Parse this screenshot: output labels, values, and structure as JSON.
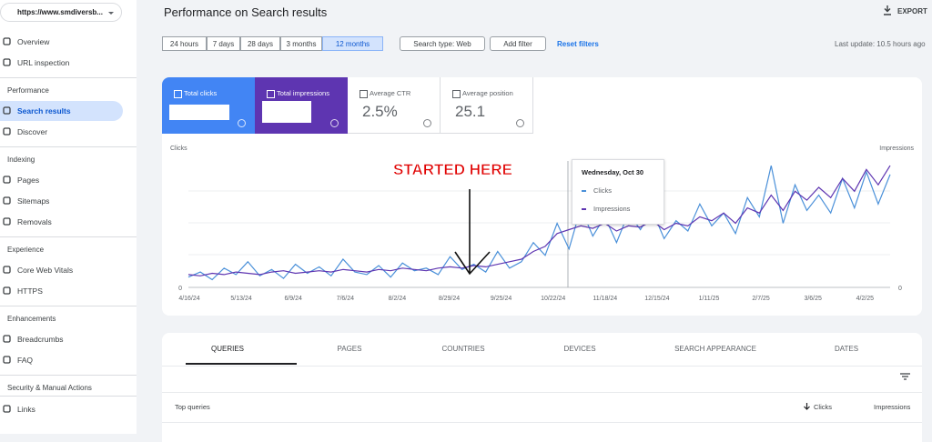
{
  "sidebar": {
    "site": "https://www.smdiversb...",
    "top_items": [
      "Overview",
      "URL inspection"
    ],
    "groups": [
      {
        "title": "Performance",
        "items": [
          "Search results",
          "Discover"
        ]
      },
      {
        "title": "Indexing",
        "items": [
          "Pages",
          "Sitemaps",
          "Removals"
        ]
      },
      {
        "title": "Experience",
        "items": [
          "Core Web Vitals",
          "HTTPS"
        ]
      },
      {
        "title": "Enhancements",
        "items": [
          "Breadcrumbs",
          "FAQ"
        ]
      },
      {
        "title": "Security & Manual Actions",
        "items": []
      }
    ],
    "bottom_items": [
      "Links"
    ]
  },
  "header": {
    "title": "Performance on Search results",
    "export": "EXPORT"
  },
  "filters": {
    "date_ranges": [
      "24 hours",
      "7 days",
      "28 days",
      "3 months",
      "12 months"
    ],
    "selected_index": 4,
    "search_type": "Search type: Web",
    "add_filter": "Add filter",
    "reset": "Reset filters",
    "last_update": "Last update: 10.5 hours ago"
  },
  "metric_cards": [
    {
      "label": "Total clicks"
    },
    {
      "label": "Total impressions"
    },
    {
      "label": "Average CTR",
      "value": "2.5%"
    },
    {
      "label": "Average position",
      "value": "25.1"
    }
  ],
  "chart_data": {
    "type": "line",
    "ylabel": "Clicks",
    "y2label": "Impressions",
    "annotation": "STARTED HERE",
    "xtick_labels": [
      "4/16/24",
      "5/13/24",
      "6/9/24",
      "7/6/24",
      "8/2/24",
      "8/29/24",
      "9/25/24",
      "10/22/24",
      "11/18/24",
      "12/15/24",
      "1/11/25",
      "2/7/25",
      "3/6/25",
      "4/2/25"
    ],
    "ylim": [
      0,
      100
    ],
    "yticks": [
      0
    ],
    "y2lim": [
      0,
      100
    ],
    "y2ticks": [
      0
    ],
    "series": [
      {
        "name": "Clicks",
        "color": "#4a90d9",
        "values": [
          8,
          12,
          6,
          15,
          10,
          20,
          9,
          14,
          7,
          18,
          11,
          16,
          9,
          22,
          12,
          10,
          17,
          8,
          19,
          13,
          15,
          10,
          24,
          14,
          18,
          12,
          28,
          15,
          20,
          35,
          25,
          50,
          30,
          62,
          40,
          55,
          35,
          58,
          45,
          60,
          38,
          52,
          44,
          65,
          48,
          58,
          42,
          70,
          55,
          95,
          50,
          80,
          60,
          72,
          58,
          85,
          62,
          90,
          65,
          88
        ]
      },
      {
        "name": "Impressions",
        "color": "#5e35b1",
        "axis": "y2",
        "values": [
          10,
          9,
          11,
          10,
          12,
          11,
          10,
          12,
          13,
          11,
          12,
          13,
          12,
          14,
          13,
          12,
          14,
          13,
          15,
          14,
          13,
          15,
          16,
          15,
          17,
          16,
          18,
          20,
          22,
          28,
          32,
          42,
          45,
          48,
          46,
          50,
          44,
          48,
          47,
          52,
          45,
          50,
          48,
          55,
          52,
          58,
          50,
          62,
          58,
          72,
          60,
          75,
          68,
          78,
          70,
          85,
          75,
          92,
          80,
          95
        ]
      }
    ],
    "tooltip": {
      "date": "Wednesday, Oct 30",
      "items": [
        "Clicks",
        "Impressions"
      ]
    }
  },
  "table": {
    "tabs": [
      "QUERIES",
      "PAGES",
      "COUNTRIES",
      "DEVICES",
      "SEARCH APPEARANCE",
      "DATES"
    ],
    "columns": [
      "Top queries",
      "Clicks",
      "Impressions"
    ]
  }
}
